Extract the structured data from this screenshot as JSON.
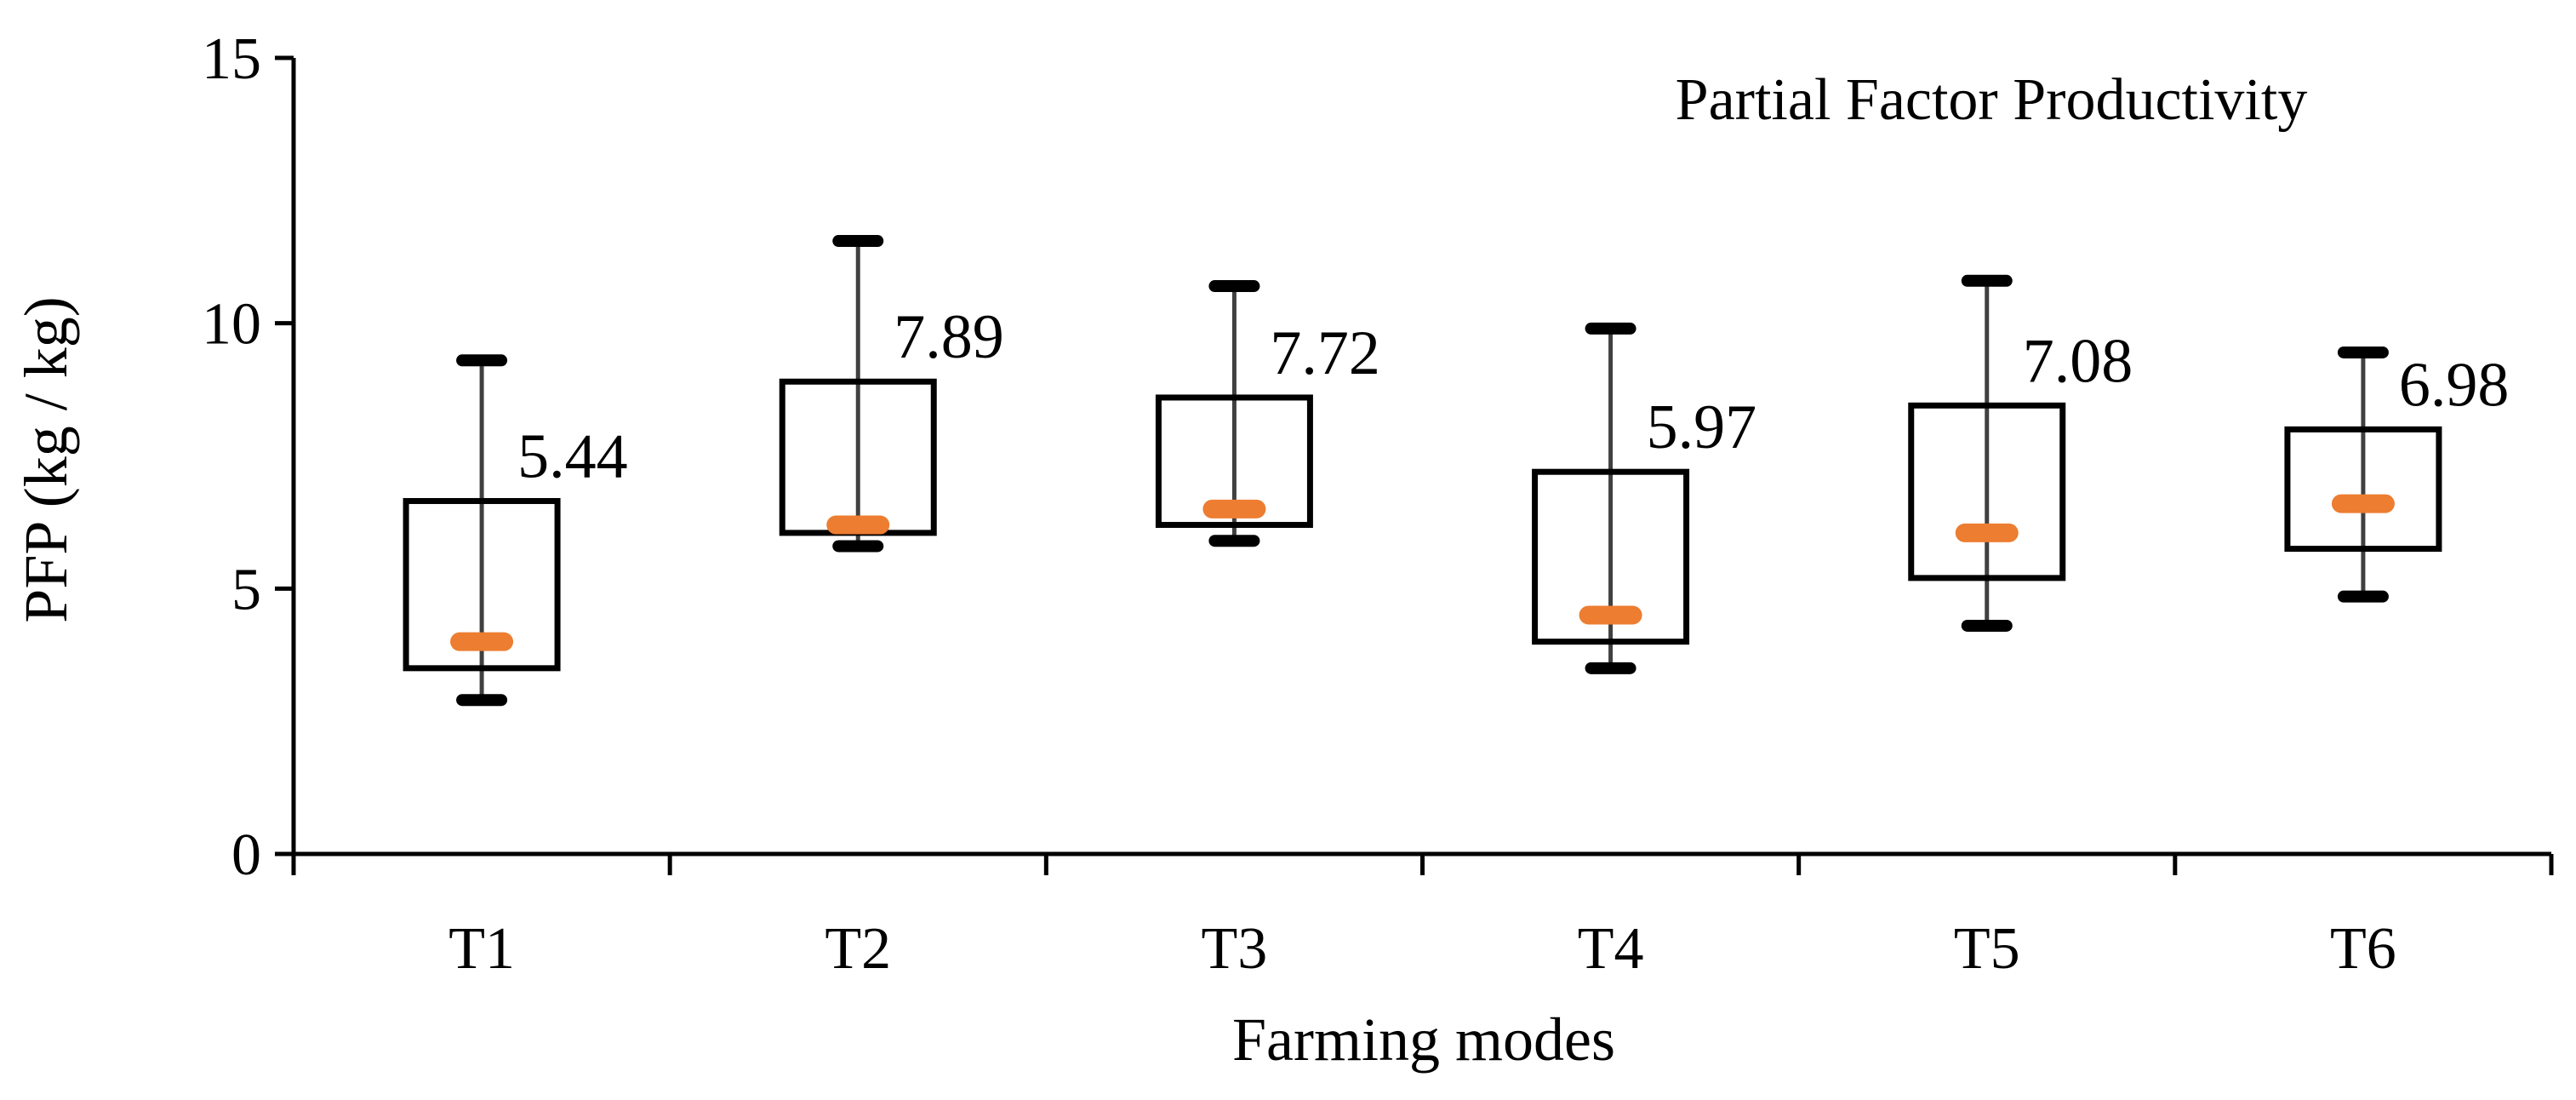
{
  "chart_data": {
    "type": "box",
    "title": "Partial Factor Productivity",
    "xlabel": "Farming modes",
    "ylabel": "PFP (kg / kg)",
    "ylim": [
      0,
      15
    ],
    "yticks": [
      "0",
      "5",
      "10",
      "15"
    ],
    "ytick_values": [
      0,
      5,
      10,
      15
    ],
    "categories": [
      "T1",
      "T2",
      "T3",
      "T4",
      "T5",
      "T6"
    ],
    "series": [
      {
        "category": "T1",
        "min": 2.9,
        "q1": 3.5,
        "median": 4.0,
        "q3": 6.65,
        "max": 9.3,
        "label": "5.44"
      },
      {
        "category": "T2",
        "min": 5.8,
        "q1": 6.05,
        "median": 6.2,
        "q3": 8.9,
        "max": 11.55,
        "label": "7.89"
      },
      {
        "category": "T3",
        "min": 5.9,
        "q1": 6.2,
        "median": 6.5,
        "q3": 8.6,
        "max": 10.7,
        "label": "7.72"
      },
      {
        "category": "T4",
        "min": 3.5,
        "q1": 4.0,
        "median": 4.5,
        "q3": 7.2,
        "max": 9.9,
        "label": "5.97"
      },
      {
        "category": "T5",
        "min": 4.3,
        "q1": 5.2,
        "median": 6.05,
        "q3": 8.45,
        "max": 10.8,
        "label": "7.08"
      },
      {
        "category": "T6",
        "min": 4.85,
        "q1": 5.75,
        "median": 6.6,
        "q3": 8.0,
        "max": 9.45,
        "label": "6.98"
      }
    ],
    "colors": {
      "box": "#000000",
      "whisker": "#404040",
      "median": "#ED7D31",
      "axis": "#000000"
    },
    "grid": false,
    "legend": "none"
  }
}
